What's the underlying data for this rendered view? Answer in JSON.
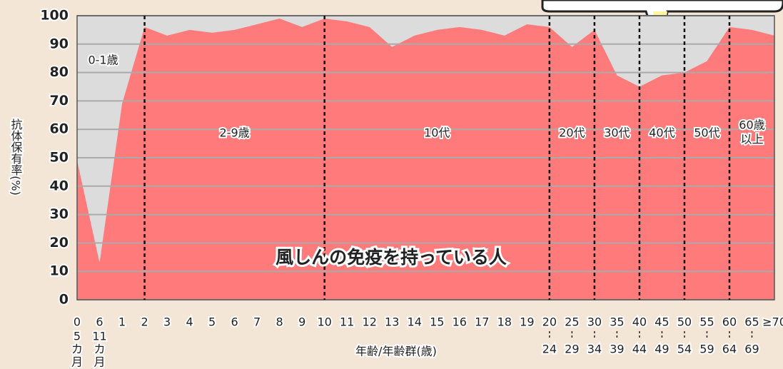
{
  "chart_data": {
    "type": "area",
    "title": "風しんの免疫を持っている人",
    "y_label": "抗体保有率(%)",
    "x_label": "年齢/年齢群(歳)",
    "categories": [
      [
        "0",
        "5",
        "カ",
        "月"
      ],
      [
        "6",
        "11",
        "カ",
        "月"
      ],
      [
        "1"
      ],
      [
        "2"
      ],
      [
        "3"
      ],
      [
        "4"
      ],
      [
        "5"
      ],
      [
        "6"
      ],
      [
        "7"
      ],
      [
        "8"
      ],
      [
        "9"
      ],
      [
        "10"
      ],
      [
        "11"
      ],
      [
        "12"
      ],
      [
        "13"
      ],
      [
        "14"
      ],
      [
        "15"
      ],
      [
        "16"
      ],
      [
        "17"
      ],
      [
        "18"
      ],
      [
        "19"
      ],
      [
        "20",
        "24"
      ],
      [
        "25",
        "29"
      ],
      [
        "30",
        "34"
      ],
      [
        "35",
        "39"
      ],
      [
        "40",
        "44"
      ],
      [
        "45",
        "49"
      ],
      [
        "50",
        "54"
      ],
      [
        "55",
        "59"
      ],
      [
        "60",
        "64"
      ],
      [
        "65",
        "69"
      ],
      [
        "≥70"
      ]
    ],
    "values": [
      49,
      13,
      69,
      96,
      93,
      95,
      94,
      95,
      97,
      99,
      96,
      99,
      98,
      96,
      89,
      93,
      95,
      96,
      95,
      93,
      97,
      96,
      89,
      95,
      79,
      75,
      79,
      80,
      84,
      96,
      95,
      93
    ],
    "color": "#ff7b7b",
    "background": "#dcdcdc",
    "regions": [
      "0-1歳",
      "2-9歳",
      "10代",
      "20代",
      "30代",
      "40代",
      "50代",
      [
        "60歳",
        "以上"
      ]
    ],
    "ylim": [
      0,
      100
    ],
    "yticks": [
      0,
      10,
      20,
      30,
      40,
      50,
      60,
      70,
      80,
      90,
      100
    ],
    "grid": true
  }
}
